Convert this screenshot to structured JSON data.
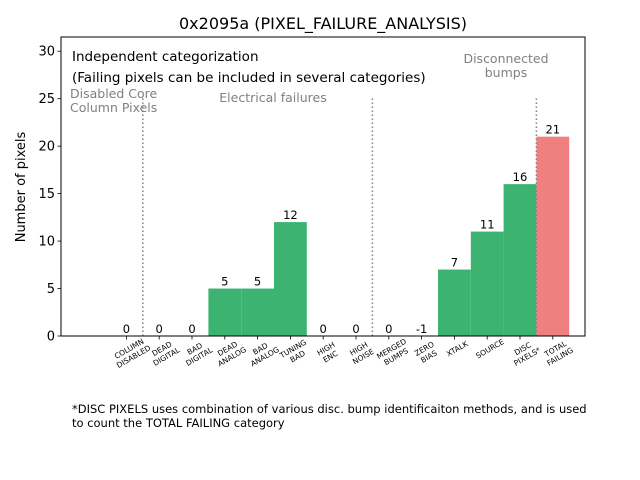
{
  "chart_data": {
    "type": "bar",
    "title": "0x2095a (PIXEL_FAILURE_ANALYSIS)",
    "ylabel": "Number of pixels",
    "xlabel": "",
    "ylim": [
      0,
      31.5
    ],
    "yticks": [
      0,
      5,
      10,
      15,
      20,
      25,
      30
    ],
    "categories": [
      [
        "COLUMN",
        "DISABLED"
      ],
      [
        "DEAD",
        "DIGITAL"
      ],
      [
        "BAD",
        "DIGITAL"
      ],
      [
        "DEAD",
        "ANALOG"
      ],
      [
        "BAD",
        "ANALOG"
      ],
      [
        "TUNING",
        "BAD"
      ],
      [
        "HIGH",
        "ENC"
      ],
      [
        "HIGH",
        "NOISE"
      ],
      [
        "MERGED",
        "BUMPS"
      ],
      [
        "ZERO",
        "BIAS"
      ],
      [
        "XTALK"
      ],
      [
        "SOURCE"
      ],
      [
        "DISC",
        "PIXELS*"
      ],
      [
        "TOTAL",
        "FAILING"
      ]
    ],
    "values": [
      0,
      0,
      0,
      5,
      5,
      12,
      0,
      0,
      0,
      -1,
      7,
      11,
      16,
      21
    ],
    "value_labels": [
      "0",
      "0",
      "0",
      "5",
      "5",
      "12",
      "0",
      "0",
      "0",
      "-1",
      "7",
      "11",
      "16",
      "21"
    ],
    "colors": {
      "normal": "#3cb371",
      "total": "#f08080",
      "group_label": "#808080",
      "divider": "#808080"
    },
    "total_index": 13,
    "dividers_after_index": [
      0,
      7,
      12
    ],
    "group_labels": [
      {
        "lines": [
          "Disabled Core",
          "Column Pixels"
        ],
        "after_index": -1
      },
      {
        "lines": [
          "Electrical failures"
        ],
        "after_index": 3
      },
      {
        "lines": [
          "Disconnected",
          "bumps"
        ],
        "after_index": 10
      }
    ],
    "annotation_lines": [
      "Independent categorization",
      "(Failing pixels can be included in several categories)"
    ]
  },
  "footnote": "*DISC PIXELS uses combination of various disc. bump identificaiton methods, and is used\nto count the TOTAL FAILING category"
}
